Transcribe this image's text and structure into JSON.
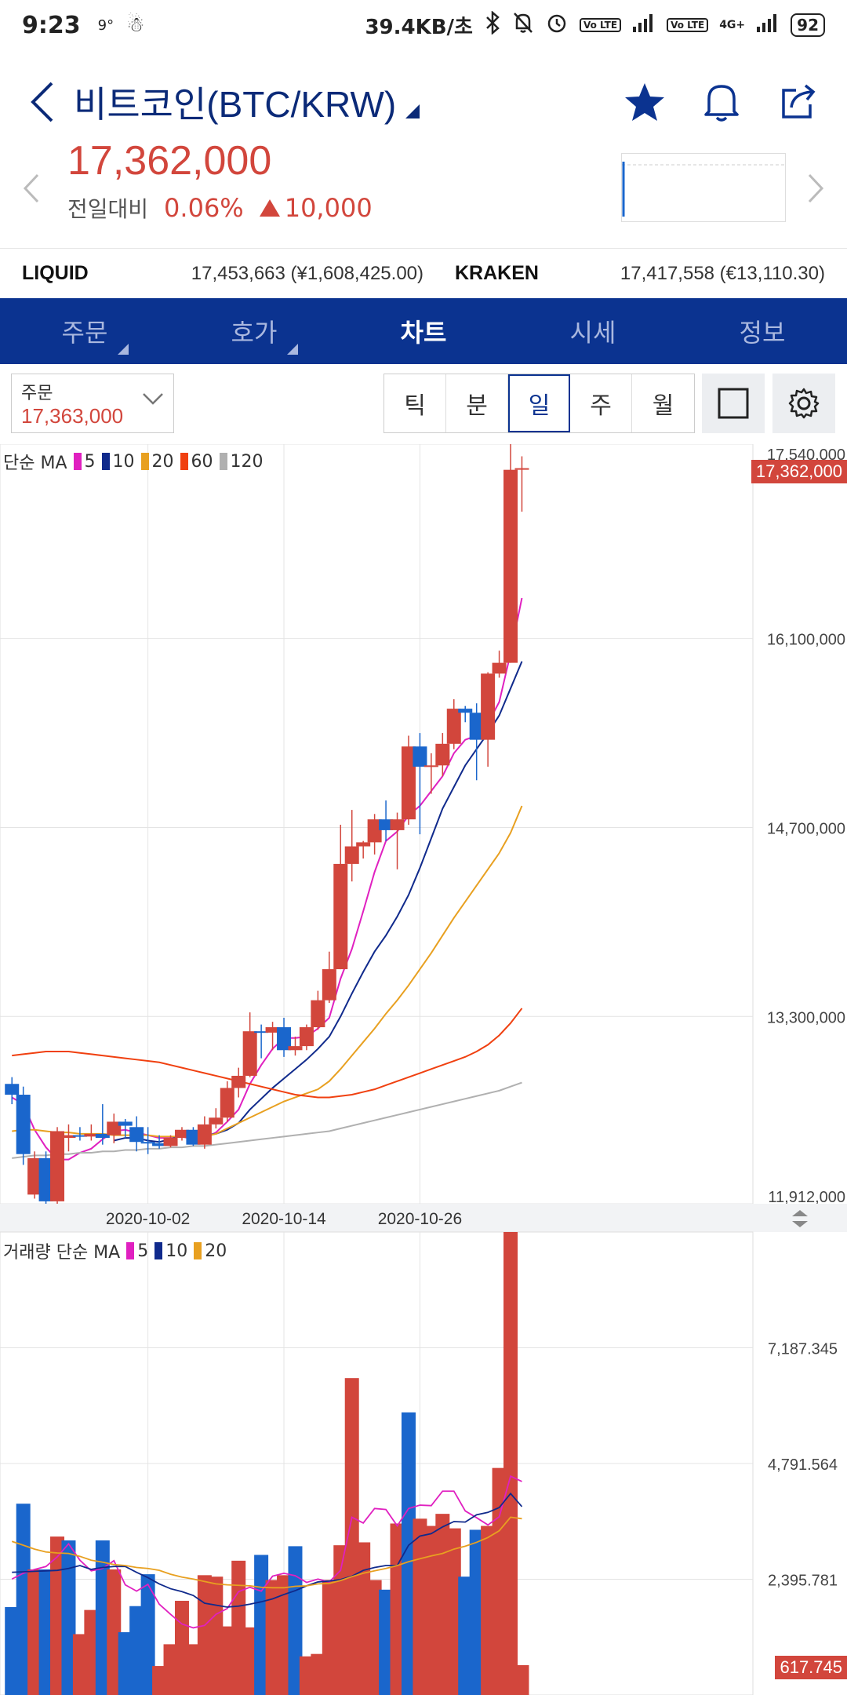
{
  "status_bar": {
    "time": "9:23",
    "temp": "9°",
    "net_speed": "39.4KB/초",
    "network": "4G+",
    "volte_label": "Vo LTE",
    "battery": "92"
  },
  "header": {
    "title": "비트코인(BTC/KRW)"
  },
  "price": {
    "current": "17,362,000",
    "change_label": "전일대비",
    "change_pct": "0.06%",
    "change_abs": "10,000"
  },
  "exchanges": [
    {
      "name": "LIQUID",
      "value": "17,453,663 (¥1,608,425.00)"
    },
    {
      "name": "KRAKEN",
      "value": "17,417,558 (€13,110.30)"
    }
  ],
  "tabs": [
    {
      "label": "주문",
      "has_menu": true,
      "active": false
    },
    {
      "label": "호가",
      "has_menu": true,
      "active": false
    },
    {
      "label": "차트",
      "has_menu": false,
      "active": true
    },
    {
      "label": "시세",
      "has_menu": false,
      "active": false
    },
    {
      "label": "정보",
      "has_menu": false,
      "active": false
    }
  ],
  "order_box": {
    "label": "주문",
    "value": "17,363,000"
  },
  "periods": [
    {
      "label": "틱",
      "active": false
    },
    {
      "label": "분",
      "active": false
    },
    {
      "label": "일",
      "active": true
    },
    {
      "label": "주",
      "active": false
    },
    {
      "label": "월",
      "active": false
    }
  ],
  "colors": {
    "up": "#d2463c",
    "down": "#1a66cc",
    "ma5": "#e020c0",
    "ma10": "#102a8c",
    "ma20": "#e8a020",
    "ma60": "#f04010",
    "ma120": "#b0b0b0",
    "brand": "#0b3390"
  },
  "chart_data": [
    {
      "type": "candlestick",
      "legend_prefix": "단순 MA",
      "ma_periods": [
        "5",
        "10",
        "20",
        "60",
        "120"
      ],
      "x_tick_labels": [
        {
          "index": 12,
          "label": "2020-10-02"
        },
        {
          "index": 24,
          "label": "2020-10-14"
        },
        {
          "index": 36,
          "label": "2020-10-26"
        }
      ],
      "y_ticks": [
        "17,540,000",
        "16,100,000",
        "14,700,000",
        "13,300,000",
        "11,912,000"
      ],
      "ylim": [
        11912000,
        17540000
      ],
      "last_price_tag": "17,362,000",
      "candles": [
        [
          12800000,
          12850000,
          12650000,
          12720000
        ],
        [
          12720000,
          12780000,
          12200000,
          12280000
        ],
        [
          11980000,
          12300000,
          11950000,
          12250000
        ],
        [
          12250000,
          12300000,
          11900000,
          11930000
        ],
        [
          11930000,
          12480000,
          11910000,
          12450000
        ],
        [
          12400000,
          12500000,
          12300000,
          12420000
        ],
        [
          12420000,
          12480000,
          12380000,
          12410000
        ],
        [
          12410000,
          12500000,
          12380000,
          12430000
        ],
        [
          12430000,
          12650000,
          12350000,
          12400000
        ],
        [
          12420000,
          12580000,
          12360000,
          12520000
        ],
        [
          12520000,
          12540000,
          12400000,
          12490000
        ],
        [
          12480000,
          12560000,
          12300000,
          12370000
        ],
        [
          12370000,
          12480000,
          12280000,
          12360000
        ],
        [
          12360000,
          12420000,
          12320000,
          12340000
        ],
        [
          12340000,
          12420000,
          12330000,
          12400000
        ],
        [
          12400000,
          12480000,
          12380000,
          12460000
        ],
        [
          12460000,
          12480000,
          12340000,
          12350000
        ],
        [
          12350000,
          12560000,
          12320000,
          12500000
        ],
        [
          12500000,
          12620000,
          12470000,
          12550000
        ],
        [
          12550000,
          12820000,
          12520000,
          12770000
        ],
        [
          12770000,
          12920000,
          12700000,
          12860000
        ],
        [
          12860000,
          13330000,
          12850000,
          13190000
        ],
        [
          13190000,
          13240000,
          12990000,
          13180000
        ],
        [
          13180000,
          13260000,
          13050000,
          13220000
        ],
        [
          13220000,
          13290000,
          13000000,
          13050000
        ],
        [
          13050000,
          13150000,
          13010000,
          13080000
        ],
        [
          13080000,
          13240000,
          13050000,
          13220000
        ],
        [
          13220000,
          13490000,
          13200000,
          13420000
        ],
        [
          13420000,
          13780000,
          13400000,
          13650000
        ],
        [
          13650000,
          14720000,
          13650000,
          14430000
        ],
        [
          14430000,
          14830000,
          14300000,
          14560000
        ],
        [
          14560000,
          14600000,
          14470000,
          14590000
        ],
        [
          14590000,
          14800000,
          14500000,
          14760000
        ],
        [
          14760000,
          14900000,
          14600000,
          14680000
        ],
        [
          14680000,
          14810000,
          14390000,
          14760000
        ],
        [
          14760000,
          15380000,
          14720000,
          15300000
        ],
        [
          15300000,
          15400000,
          14650000,
          15150000
        ],
        [
          15150000,
          15250000,
          14950000,
          15160000
        ],
        [
          15160000,
          15400000,
          15080000,
          15320000
        ],
        [
          15320000,
          15650000,
          15280000,
          15580000
        ],
        [
          15580000,
          15600000,
          15480000,
          15550000
        ],
        [
          15550000,
          15620000,
          15050000,
          15350000
        ],
        [
          15350000,
          15850000,
          15150000,
          15840000
        ],
        [
          15840000,
          16010000,
          15810000,
          15920000
        ],
        [
          15920000,
          17540000,
          15920000,
          17350000
        ],
        [
          17360000,
          17450000,
          17040000,
          17362000
        ]
      ],
      "ma": {
        "5": [
          12700000,
          12650000,
          12460000,
          12330000,
          12240000,
          12240000,
          12290000,
          12320000,
          12390000,
          12450000,
          12460000,
          12440000,
          12420000,
          12400000,
          12400000,
          12410000,
          12390000,
          12400000,
          12440000,
          12520000,
          12610000,
          12800000,
          12940000,
          13060000,
          13140000,
          13140000,
          13150000,
          13210000,
          13290000,
          13580000,
          13800000,
          14080000,
          14370000,
          14600000,
          14670000,
          14790000,
          14860000,
          14970000,
          15080000,
          15250000,
          15350000,
          15380000,
          15470000,
          15630000,
          15990000,
          16400000
        ],
        "10": [
          null,
          null,
          null,
          null,
          null,
          null,
          null,
          null,
          null,
          12380000,
          12400000,
          12400000,
          12380000,
          12370000,
          12390000,
          12420000,
          12410000,
          12420000,
          12430000,
          12460000,
          12510000,
          12610000,
          12690000,
          12770000,
          12840000,
          12910000,
          12980000,
          13060000,
          13150000,
          13300000,
          13470000,
          13630000,
          13780000,
          13900000,
          14040000,
          14200000,
          14400000,
          14620000,
          14840000,
          15000000,
          15160000,
          15280000,
          15400000,
          15530000,
          15730000,
          15930000
        ],
        "20": [
          12450000,
          12460000,
          12460000,
          12450000,
          12440000,
          12440000,
          12430000,
          12430000,
          12430000,
          12420000,
          12420000,
          12420000,
          12420000,
          12410000,
          12410000,
          12410000,
          12400000,
          12410000,
          12430000,
          12470000,
          12510000,
          12550000,
          12590000,
          12630000,
          12670000,
          12700000,
          12730000,
          12760000,
          12820000,
          12910000,
          13010000,
          13110000,
          13210000,
          13320000,
          13420000,
          13530000,
          13650000,
          13770000,
          13900000,
          14030000,
          14150000,
          14270000,
          14390000,
          14510000,
          14660000,
          14860000
        ],
        "60": [
          13010000,
          13020000,
          13030000,
          13040000,
          13040000,
          13040000,
          13030000,
          13020000,
          13010000,
          13000000,
          12990000,
          12980000,
          12970000,
          12960000,
          12940000,
          12920000,
          12900000,
          12880000,
          12860000,
          12840000,
          12820000,
          12800000,
          12780000,
          12760000,
          12740000,
          12720000,
          12710000,
          12700000,
          12700000,
          12710000,
          12720000,
          12740000,
          12760000,
          12790000,
          12820000,
          12850000,
          12880000,
          12910000,
          12940000,
          12970000,
          13000000,
          13040000,
          13090000,
          13160000,
          13250000,
          13360000
        ],
        "120": [
          12250000,
          12260000,
          12270000,
          12270000,
          12280000,
          12280000,
          12290000,
          12290000,
          12300000,
          12300000,
          12310000,
          12310000,
          12320000,
          12320000,
          12330000,
          12330000,
          12340000,
          12340000,
          12350000,
          12360000,
          12370000,
          12380000,
          12390000,
          12400000,
          12410000,
          12420000,
          12430000,
          12440000,
          12450000,
          12470000,
          12490000,
          12510000,
          12530000,
          12550000,
          12570000,
          12590000,
          12610000,
          12630000,
          12650000,
          12670000,
          12690000,
          12710000,
          12730000,
          12750000,
          12780000,
          12810000
        ]
      }
    },
    {
      "type": "bar",
      "title": "거래량 단순 MA",
      "ma_periods": [
        "5",
        "10",
        "20"
      ],
      "y_ticks": [
        "7,187.345",
        "4,791.564",
        "2,395.781"
      ],
      "ylim": [
        0,
        9584
      ],
      "last_value_tag": "617.745",
      "values": [
        1820,
        3960,
        2600,
        2600,
        3280,
        3200,
        1260,
        1760,
        3200,
        2600,
        1300,
        1840,
        2500,
        600,
        1050,
        1950,
        1050,
        2480,
        2450,
        1420,
        2780,
        1400,
        2900,
        2380,
        2480,
        3080,
        800,
        850,
        2380,
        3100,
        6560,
        3160,
        2380,
        2180,
        3550,
        5850,
        3650,
        3500,
        3750,
        3450,
        2450,
        3420,
        3500,
        4700,
        9584,
        618
      ],
      "colors": [
        "down",
        "down",
        "up",
        "down",
        "up",
        "down",
        "up",
        "up",
        "down",
        "up",
        "down",
        "down",
        "down",
        "up",
        "up",
        "up",
        "up",
        "up",
        "up",
        "up",
        "up",
        "up",
        "down",
        "up",
        "up",
        "down",
        "up",
        "up",
        "up",
        "up",
        "up",
        "up",
        "up",
        "down",
        "up",
        "down",
        "up",
        "up",
        "up",
        "up",
        "down",
        "down",
        "up",
        "up",
        "up",
        "up"
      ],
      "ma": {
        "5": [
          2400,
          2520,
          2600,
          2660,
          2860,
          3130,
          2790,
          2570,
          2620,
          2780,
          2280,
          2150,
          2290,
          1880,
          1670,
          1470,
          1390,
          1440,
          1670,
          1790,
          2140,
          2230,
          2150,
          2460,
          2520,
          2470,
          2330,
          2400,
          2340,
          2580,
          3680,
          3560,
          3860,
          3840,
          3500,
          3860,
          3930,
          3920,
          4220,
          4220,
          3810,
          3670,
          3520,
          3690,
          4530,
          4420
        ],
        "10": [
          2540,
          2550,
          2560,
          2570,
          2580,
          2620,
          2680,
          2600,
          2640,
          2660,
          2660,
          2540,
          2430,
          2300,
          2200,
          2140,
          2060,
          1900,
          1860,
          1820,
          1840,
          1880,
          1930,
          1990,
          2080,
          2160,
          2260,
          2340,
          2360,
          2390,
          2460,
          2580,
          2640,
          2680,
          2680,
          3100,
          3290,
          3340,
          3480,
          3590,
          3580,
          3730,
          3780,
          3880,
          4170,
          3900
        ],
        "20": [
          3180,
          3100,
          3020,
          2960,
          2940,
          2930,
          2870,
          2790,
          2750,
          2700,
          2680,
          2640,
          2620,
          2580,
          2500,
          2440,
          2400,
          2350,
          2300,
          2280,
          2270,
          2260,
          2230,
          2220,
          2220,
          2250,
          2260,
          2300,
          2310,
          2370,
          2450,
          2520,
          2570,
          2620,
          2680,
          2760,
          2820,
          2880,
          2930,
          3020,
          3080,
          3160,
          3260,
          3400,
          3680,
          3650
        ]
      }
    }
  ]
}
